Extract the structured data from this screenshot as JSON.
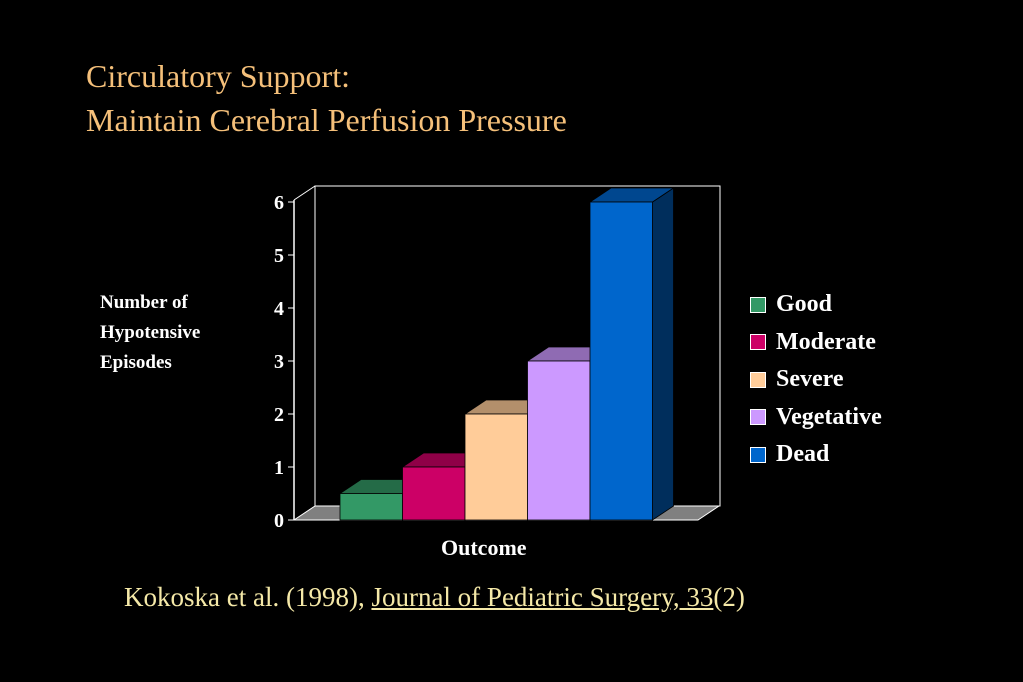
{
  "slide": {
    "title_line1": "Circulatory Support:",
    "title_line2": "Maintain Cerebral Perfusion Pressure",
    "citation_prefix": "Kokoska et al. (1998), ",
    "citation_journal": "Journal of Pediatric Surgery, 33",
    "citation_suffix": "(2)"
  },
  "chart_data": {
    "type": "bar",
    "title": "",
    "xlabel": "Outcome",
    "ylabel_lines": [
      "Number of",
      "Hypotensive",
      "Episodes"
    ],
    "ylim": [
      0,
      6
    ],
    "yticks": [
      0,
      1,
      2,
      3,
      4,
      5,
      6
    ],
    "grid": false,
    "legend_position": "right",
    "three_d": true,
    "series": [
      {
        "name": "Good",
        "value": 0.5,
        "color": "#339966"
      },
      {
        "name": "Moderate",
        "value": 1,
        "color": "#cc0066"
      },
      {
        "name": "Severe",
        "value": 2,
        "color": "#ffcc99"
      },
      {
        "name": "Vegetative",
        "value": 3,
        "color": "#cc99ff"
      },
      {
        "name": "Dead",
        "value": 6,
        "color": "#0066cc"
      }
    ],
    "colors": {
      "background": "#000000",
      "axis": "#ffffff",
      "floor": "#808080",
      "title": "#f5c07a",
      "citation": "#f5e9a8"
    }
  }
}
